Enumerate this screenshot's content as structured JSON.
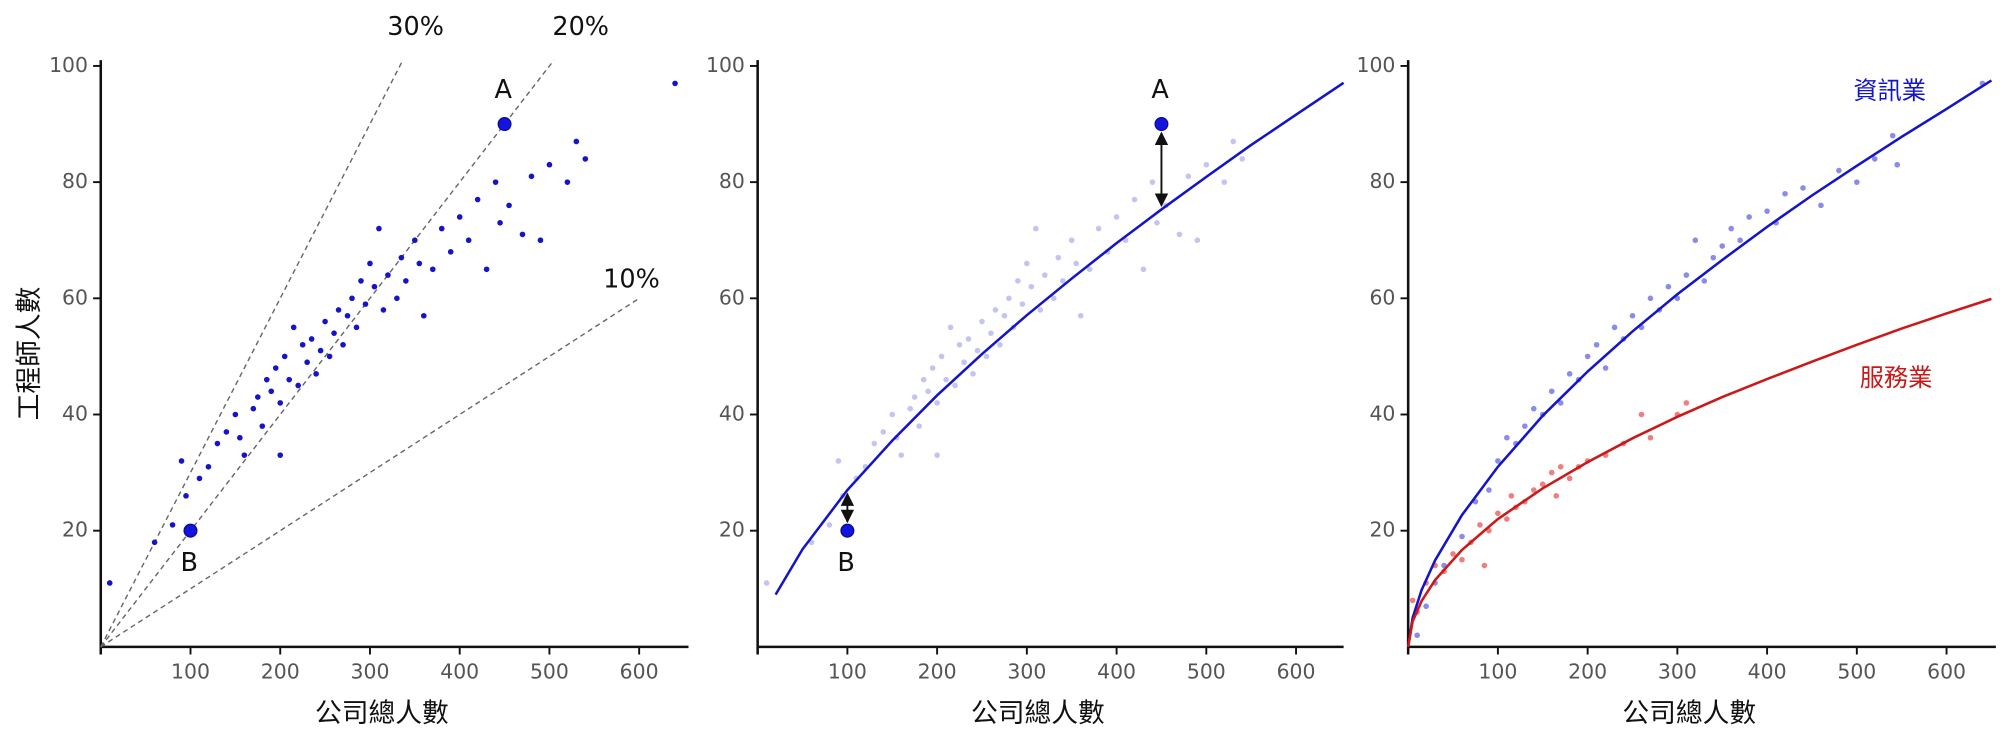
{
  "chart_data": [
    {
      "type": "scatter",
      "xlabel": "公司總人數",
      "ylabel": "工程師人數",
      "xlim": [
        0,
        655
      ],
      "ylim": [
        0,
        101
      ],
      "xticks": [
        100,
        200,
        300,
        400,
        500,
        600
      ],
      "yticks": [
        20,
        40,
        60,
        80,
        100
      ],
      "reference_lines": [
        {
          "slope": 0.3,
          "label": "30%"
        },
        {
          "slope": 0.2,
          "label": "20%"
        },
        {
          "slope": 0.1,
          "label": "10%"
        }
      ],
      "series": [
        {
          "mode": "markers",
          "color": "#1414c8",
          "x": [
            10,
            60,
            80,
            90,
            95,
            110,
            120,
            130,
            140,
            150,
            155,
            160,
            170,
            175,
            180,
            185,
            190,
            195,
            200,
            200,
            205,
            210,
            215,
            220,
            225,
            230,
            235,
            240,
            245,
            250,
            255,
            260,
            265,
            270,
            275,
            280,
            285,
            290,
            295,
            300,
            305,
            310,
            315,
            320,
            330,
            335,
            340,
            350,
            355,
            360,
            370,
            380,
            390,
            400,
            410,
            420,
            430,
            440,
            445,
            455,
            470,
            480,
            490,
            500,
            520,
            530,
            540,
            640
          ],
          "values": [
            11,
            18,
            21,
            32,
            26,
            29,
            31,
            35,
            37,
            40,
            36,
            33,
            41,
            43,
            38,
            46,
            44,
            48,
            42,
            33,
            50,
            46,
            55,
            45,
            52,
            49,
            53,
            47,
            51,
            56,
            50,
            54,
            58,
            52,
            57,
            60,
            55,
            63,
            59,
            66,
            62,
            72,
            58,
            64,
            60,
            67,
            63,
            70,
            66,
            57,
            65,
            72,
            68,
            74,
            70,
            77,
            65,
            80,
            73,
            76,
            71,
            81,
            70,
            83,
            80,
            87,
            84,
            97
          ]
        }
      ],
      "annotations": [
        {
          "label": "A",
          "x": 450,
          "y": 90
        },
        {
          "label": "B",
          "x": 100,
          "y": 20
        }
      ]
    },
    {
      "type": "scatter",
      "xlabel": "公司總人數",
      "xlim": [
        0,
        653
      ],
      "ylim": [
        0,
        101
      ],
      "xticks": [
        100,
        200,
        300,
        400,
        500,
        600
      ],
      "yticks": [
        20,
        40,
        60,
        80,
        100
      ],
      "series": [
        {
          "mode": "markers",
          "color": "#c4c4f0",
          "x": [
            10,
            60,
            80,
            90,
            95,
            110,
            120,
            130,
            140,
            150,
            155,
            160,
            170,
            175,
            180,
            185,
            190,
            195,
            200,
            200,
            205,
            210,
            215,
            220,
            225,
            230,
            235,
            240,
            245,
            250,
            255,
            260,
            265,
            270,
            275,
            280,
            285,
            290,
            295,
            300,
            305,
            310,
            315,
            320,
            330,
            335,
            340,
            350,
            355,
            360,
            370,
            380,
            390,
            400,
            410,
            420,
            430,
            440,
            445,
            455,
            470,
            480,
            490,
            500,
            520,
            530,
            540
          ],
          "values": [
            11,
            18,
            21,
            32,
            26,
            29,
            31,
            35,
            37,
            40,
            36,
            33,
            41,
            43,
            38,
            46,
            44,
            48,
            42,
            33,
            50,
            46,
            55,
            45,
            52,
            49,
            53,
            47,
            51,
            56,
            50,
            54,
            58,
            52,
            57,
            60,
            55,
            63,
            59,
            66,
            62,
            72,
            58,
            64,
            60,
            67,
            63,
            70,
            66,
            57,
            65,
            72,
            68,
            74,
            70,
            77,
            65,
            80,
            73,
            76,
            71,
            81,
            70,
            83,
            80,
            87,
            84
          ]
        },
        {
          "mode": "line",
          "color": "#1414c8",
          "x": [
            20,
            50,
            100,
            150,
            200,
            250,
            300,
            350,
            400,
            450,
            500,
            550,
            600,
            653
          ],
          "values": [
            9.0,
            16.8,
            27.0,
            35.5,
            43.3,
            50.4,
            57.1,
            63.4,
            69.5,
            75.3,
            80.9,
            86.4,
            91.6,
            97.1
          ]
        }
      ],
      "annotations": [
        {
          "label": "A",
          "x": 450,
          "y": 90
        },
        {
          "label": "B",
          "x": 100,
          "y": 20
        }
      ]
    },
    {
      "type": "scatter",
      "xlabel": "公司總人數",
      "xlim": [
        0,
        655
      ],
      "ylim": [
        0,
        101
      ],
      "xticks": [
        100,
        200,
        300,
        400,
        500,
        600
      ],
      "yticks": [
        20,
        40,
        60,
        80,
        100
      ],
      "series": [
        {
          "mode": "markers",
          "color": "#5a5ae0",
          "x": [
            10,
            20,
            30,
            40,
            60,
            75,
            90,
            100,
            110,
            120,
            130,
            140,
            150,
            160,
            170,
            180,
            190,
            200,
            210,
            220,
            230,
            240,
            250,
            260,
            270,
            280,
            290,
            300,
            310,
            320,
            330,
            340,
            350,
            360,
            370,
            380,
            400,
            410,
            420,
            440,
            460,
            480,
            500,
            520,
            540,
            545,
            640
          ],
          "values": [
            2,
            7,
            11,
            14,
            19,
            25,
            27,
            32,
            36,
            35,
            38,
            41,
            40,
            44,
            42,
            47,
            46,
            50,
            52,
            48,
            55,
            53,
            57,
            55,
            60,
            58,
            62,
            60,
            64,
            70,
            63,
            67,
            69,
            72,
            70,
            74,
            75,
            73,
            78,
            79,
            76,
            82,
            80,
            84,
            88,
            83,
            97
          ]
        },
        {
          "mode": "markers",
          "color": "#e84848",
          "x": [
            5,
            10,
            20,
            30,
            40,
            50,
            60,
            70,
            80,
            85,
            90,
            100,
            110,
            115,
            120,
            130,
            140,
            150,
            160,
            165,
            170,
            180,
            190,
            200,
            220,
            240,
            260,
            270,
            300,
            310
          ],
          "values": [
            8,
            6,
            11,
            14,
            13,
            16,
            15,
            18,
            21,
            14,
            20,
            23,
            22,
            26,
            24,
            25,
            27,
            28,
            30,
            26,
            31,
            29,
            31,
            32,
            33,
            35,
            40,
            36,
            40,
            42
          ]
        },
        {
          "mode": "line",
          "name": "資訊業",
          "color": "#1414c8",
          "x": [
            0,
            5,
            15,
            30,
            60,
            100,
            150,
            200,
            250,
            300,
            350,
            400,
            450,
            500,
            550,
            600,
            650
          ],
          "values": [
            0,
            5.0,
            9.8,
            14.9,
            22.7,
            31.0,
            39.8,
            47.4,
            54.3,
            60.7,
            66.6,
            72.3,
            77.7,
            82.8,
            87.8,
            92.6,
            97.5
          ]
        },
        {
          "mode": "line",
          "name": "服務業",
          "color": "#cc1818",
          "x": [
            0,
            5,
            15,
            30,
            60,
            100,
            150,
            200,
            250,
            300,
            350,
            400,
            450,
            500,
            550,
            600,
            650
          ],
          "values": [
            0,
            4.4,
            7.9,
            11.5,
            16.7,
            22.0,
            27.3,
            31.8,
            35.9,
            39.6,
            43.0,
            46.1,
            49.1,
            52.0,
            54.8,
            57.4,
            59.9
          ]
        }
      ]
    }
  ]
}
